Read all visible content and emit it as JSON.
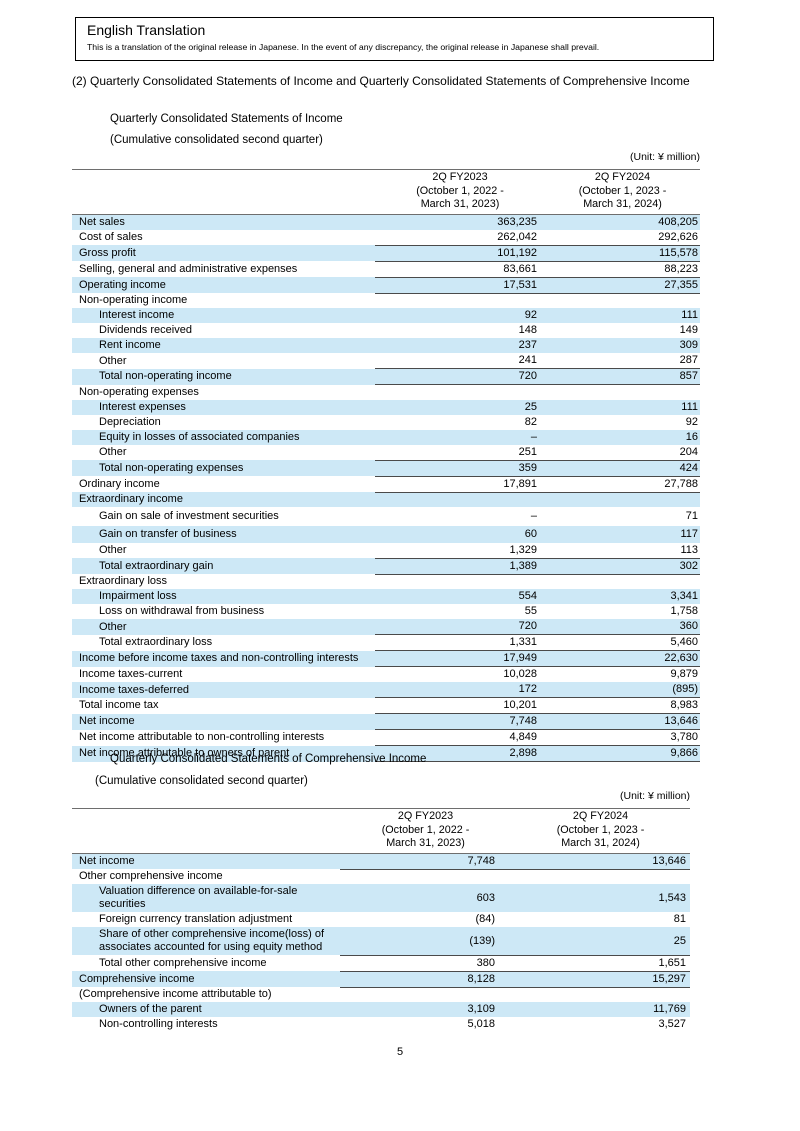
{
  "translation": {
    "title": "English Translation",
    "note": "This is a translation of the original release in Japanese. In the event of any discrepancy, the original release in Japanese shall prevail."
  },
  "heading": "(2) Quarterly Consolidated Statements of Income and Quarterly Consolidated Statements of Comprehensive Income",
  "page_number": "5",
  "colors": {
    "highlight": "#cde8f6",
    "rule": "#4a4a4a"
  },
  "tables": [
    {
      "title": "Quarterly Consolidated Statements of Income",
      "subtitle": "(Cumulative consolidated second quarter)",
      "unit": "(Unit: ¥ million)",
      "col_headers": [
        [
          "2Q FY2023",
          "(October 1, 2022 -",
          "March 31, 2023)"
        ],
        [
          "2Q FY2024",
          "(October 1, 2023 -",
          "March 31, 2024)"
        ]
      ],
      "rows": [
        {
          "l": "Net sales",
          "i": 0,
          "v1": "363,235",
          "v2": "408,205",
          "hl": 1
        },
        {
          "l": "Cost of sales",
          "i": 0,
          "v1": "262,042",
          "v2": "292,626"
        },
        {
          "l": "Gross profit",
          "i": 0,
          "v1": "101,192",
          "v2": "115,578",
          "hl": 1,
          "bt": 1
        },
        {
          "l": "Selling, general and administrative expenses",
          "i": 0,
          "v1": "83,661",
          "v2": "88,223",
          "bt": 1
        },
        {
          "l": "Operating income",
          "i": 0,
          "v1": "17,531",
          "v2": "27,355",
          "hl": 1,
          "bt": 1
        },
        {
          "l": "Non-operating income",
          "i": 0,
          "v1": "",
          "v2": "",
          "bt": 1
        },
        {
          "l": "Interest income",
          "i": 1,
          "v1": "92",
          "v2": "111",
          "hl": 1
        },
        {
          "l": "Dividends received",
          "i": 1,
          "v1": "148",
          "v2": "149"
        },
        {
          "l": "Rent income",
          "i": 1,
          "v1": "237",
          "v2": "309",
          "hl": 1
        },
        {
          "l": "Other",
          "i": 1,
          "v1": "241",
          "v2": "287"
        },
        {
          "l": "Total non-operating income",
          "i": 1,
          "v1": "720",
          "v2": "857",
          "hl": 1,
          "bt": 1
        },
        {
          "l": "Non-operating expenses",
          "i": 0,
          "v1": "",
          "v2": "",
          "bt": 1
        },
        {
          "l": "Interest expenses",
          "i": 1,
          "v1": "25",
          "v2": "111",
          "hl": 1
        },
        {
          "l": "Depreciation",
          "i": 1,
          "v1": "82",
          "v2": "92"
        },
        {
          "l": "Equity in losses of associated companies",
          "i": 1,
          "v1": "–",
          "v2": "16",
          "hl": 1
        },
        {
          "l": "Other",
          "i": 1,
          "v1": "251",
          "v2": "204"
        },
        {
          "l": "Total non-operating expenses",
          "i": 1,
          "v1": "359",
          "v2": "424",
          "hl": 1,
          "bt": 1
        },
        {
          "l": "Ordinary income",
          "i": 0,
          "v1": "17,891",
          "v2": "27,788",
          "bt": 1
        },
        {
          "l": "Extraordinary income",
          "i": 0,
          "v1": "",
          "v2": "",
          "hl": 1,
          "bt": 1
        },
        {
          "l": "Gain on sale of investment securities",
          "i": 1,
          "v1": "–",
          "v2": "71",
          "sz": "t18"
        },
        {
          "l": "Gain on transfer of business",
          "i": 1,
          "v1": "60",
          "v2": "117",
          "hl": 1,
          "sz": "t16"
        },
        {
          "l": "Other",
          "i": 1,
          "v1": "1,329",
          "v2": "113"
        },
        {
          "l": "Total extraordinary gain",
          "i": 1,
          "v1": "1,389",
          "v2": "302",
          "hl": 1,
          "bt": 1
        },
        {
          "l": "Extraordinary loss",
          "i": 0,
          "v1": "",
          "v2": "",
          "bt": 1
        },
        {
          "l": "Impairment loss",
          "i": 1,
          "v1": "554",
          "v2": "3,341",
          "hl": 1
        },
        {
          "l": "Loss on withdrawal from business",
          "i": 1,
          "v1": "55",
          "v2": "1,758"
        },
        {
          "l": "Other",
          "i": 1,
          "v1": "720",
          "v2": "360",
          "hl": 1
        },
        {
          "l": "Total extraordinary loss",
          "i": 1,
          "v1": "1,331",
          "v2": "5,460",
          "bt": 1
        },
        {
          "l": "Income before income taxes and non-controlling interests",
          "i": 0,
          "v1": "17,949",
          "v2": "22,630",
          "hl": 1,
          "bt": 1
        },
        {
          "l": "Income taxes-current",
          "i": 0,
          "v1": "10,028",
          "v2": "9,879",
          "bt": 1
        },
        {
          "l": "Income taxes-deferred",
          "i": 0,
          "v1": "172",
          "v2": "(895)",
          "hl": 1
        },
        {
          "l": "Total income tax",
          "i": 0,
          "v1": "10,201",
          "v2": "8,983",
          "bt": 1
        },
        {
          "l": "Net income",
          "i": 0,
          "v1": "7,748",
          "v2": "13,646",
          "hl": 1,
          "bt": 1
        },
        {
          "l": "Net income attributable to non-controlling interests",
          "i": 0,
          "v1": "4,849",
          "v2": "3,780",
          "bt": 1
        },
        {
          "l": "Net income attributable to owners of parent",
          "i": 0,
          "v1": "2,898",
          "v2": "9,866",
          "hl": 1,
          "bt": 1,
          "bb": 1
        }
      ]
    },
    {
      "title": "Quarterly Consolidated Statements of Comprehensive Income",
      "subtitle": "(Cumulative consolidated second quarter)",
      "unit": "(Unit: ¥ million)",
      "col_headers": [
        [
          "2Q FY2023",
          "(October 1, 2022 -",
          "March 31, 2023)"
        ],
        [
          "2Q FY2024",
          "(October 1, 2023 -",
          "March 31, 2024)"
        ]
      ],
      "rows": [
        {
          "l": "Net income",
          "i": 0,
          "v1": "7,748",
          "v2": "13,646",
          "hl": 1
        },
        {
          "l": "Other comprehensive income",
          "i": 0,
          "v1": "",
          "v2": "",
          "bt": 1
        },
        {
          "l": "Valuation difference on available-for-sale securities",
          "i": 1,
          "v1": "603",
          "v2": "1,543",
          "hl": 1
        },
        {
          "l": "Foreign currency translation adjustment",
          "i": 1,
          "v1": "(84)",
          "v2": "81"
        },
        {
          "l": "Share of other comprehensive income(loss) of associates accounted for using equity method",
          "i": 1,
          "v1": "(139)",
          "v2": "25",
          "hl": 1
        },
        {
          "l": "Total other comprehensive income",
          "i": 1,
          "v1": "380",
          "v2": "1,651",
          "bt": 1
        },
        {
          "l": "Comprehensive income",
          "i": 0,
          "v1": "8,128",
          "v2": "15,297",
          "hl": 1,
          "bt": 1,
          "bb": 1
        },
        {
          "l": "(Comprehensive income attributable to)",
          "i": 0,
          "v1": "",
          "v2": ""
        },
        {
          "l": "Owners of the parent",
          "i": 1,
          "v1": "3,109",
          "v2": "11,769",
          "hl": 1
        },
        {
          "l": "Non-controlling interests",
          "i": 1,
          "v1": "5,018",
          "v2": "3,527"
        }
      ]
    }
  ]
}
